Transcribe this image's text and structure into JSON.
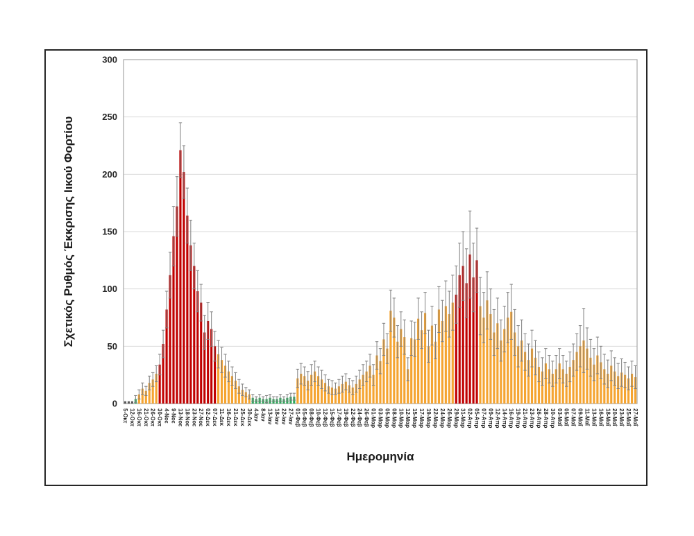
{
  "figure": {
    "background_color": "#FFFFFF",
    "frame_border_color": "#262626"
  },
  "chart_data": {
    "type": "bar",
    "title": "",
    "ylabel": "Σχετικός Ρυθμός Έκκρισης Ιικού Φορτίου",
    "xlabel": "Ημερομηνία",
    "ylim": [
      0,
      300
    ],
    "yticks": [
      0,
      50,
      100,
      150,
      200,
      250,
      300
    ],
    "grid": "horizontal",
    "legend": "none",
    "error_bars": "symmetric, capped, drawn over bars",
    "x_label_every_n_bars": 2,
    "categories": [
      "5-Οκτ",
      "12-Οκτ",
      "16-Οκτ",
      "21-Οκτ",
      "26-Οκτ",
      "30-Οκτ",
      "4-Νοε",
      "9-Νοε",
      "13-Νοε",
      "18-Νοε",
      "23-Νοε",
      "27-Νοε",
      "02-Δεκ",
      "07-Δεκ",
      "11-Δεκ",
      "16-Δεκ",
      "21-Δεκ",
      "25-Δεκ",
      "30-Δεκ",
      "4-Ιαν",
      "8-Ιαν",
      "13-Ιαν",
      "18-Ιαν",
      "22-Ιαν",
      "27-Ιαν",
      "01-Φεβ",
      "05-Φεβ",
      "08-Φεβ",
      "10-Φεβ",
      "12-Φεβ",
      "15-Φεβ",
      "17-Φεβ",
      "19-Φεβ",
      "22-Φεβ",
      "24-Φεβ",
      "26-Φεβ",
      "01-Μαρ",
      "03-Μαρ",
      "05-Μαρ",
      "08-Μαρ",
      "10-Μαρ",
      "12-Μαρ",
      "15-Μαρ",
      "17-Μαρ",
      "19-Μαρ",
      "22-Μαρ",
      "24-Μαρ",
      "26-Μαρ",
      "29-Μαρ",
      "31-Μαρ",
      "02-Απρ",
      "05-Απρ",
      "07-Απρ",
      "09-Απρ",
      "12-Απρ",
      "14-Απρ",
      "16-Απρ",
      "19-Απρ",
      "21-Απρ",
      "23-Απρ",
      "26-Απρ",
      "28-Απρ",
      "30-Απρ",
      "03-Μαΐ",
      "05-Μαΐ",
      "07-Μαΐ",
      "09-Μαΐ",
      "11-Μαΐ",
      "13-Μαΐ",
      "16-Μαΐ",
      "18-Μαΐ",
      "20-Μαΐ",
      "23-Μαΐ",
      "25-Μαΐ",
      "27-Μαΐ"
    ],
    "bar_values": [
      2,
      2,
      2,
      4,
      8,
      13,
      11,
      18,
      21,
      26,
      34,
      52,
      82,
      112,
      146,
      172,
      221,
      202,
      164,
      138,
      120,
      98,
      88,
      62,
      72,
      65,
      50,
      43,
      38,
      33,
      28,
      24,
      20,
      15,
      12,
      10,
      8,
      5,
      4,
      5,
      4,
      4,
      5,
      4,
      4,
      5,
      4,
      5,
      6,
      6,
      22,
      26,
      24,
      20,
      25,
      28,
      24,
      21,
      18,
      15,
      14,
      13,
      15,
      17,
      19,
      16,
      14,
      17,
      21,
      25,
      28,
      33,
      25,
      42,
      37,
      56,
      48,
      81,
      75,
      54,
      65,
      58,
      30,
      57,
      56,
      74,
      64,
      79,
      50,
      68,
      54,
      82,
      72,
      85,
      78,
      88,
      95,
      112,
      120,
      105,
      130,
      110,
      125,
      85,
      75,
      90,
      78,
      62,
      70,
      55,
      65,
      75,
      80,
      62,
      50,
      55,
      45,
      38,
      48,
      40,
      32,
      28,
      35,
      30,
      26,
      30,
      35,
      30,
      26,
      32,
      38,
      45,
      50,
      55,
      48,
      40,
      34,
      42,
      36,
      30,
      26,
      33,
      28,
      24,
      27,
      25,
      22,
      26,
      23
    ],
    "bar_errors": [
      0,
      0,
      0,
      3,
      4,
      5,
      4,
      6,
      6,
      7,
      9,
      12,
      16,
      20,
      26,
      26,
      24,
      23,
      24,
      22,
      20,
      18,
      16,
      15,
      16,
      15,
      13,
      12,
      11,
      10,
      9,
      8,
      7,
      6,
      5,
      4,
      4,
      3,
      2,
      3,
      2,
      3,
      3,
      2,
      2,
      3,
      2,
      3,
      3,
      3,
      8,
      9,
      8,
      8,
      9,
      9,
      8,
      8,
      7,
      6,
      6,
      5,
      6,
      7,
      7,
      6,
      6,
      7,
      8,
      9,
      9,
      10,
      9,
      12,
      11,
      14,
      13,
      18,
      17,
      14,
      15,
      15,
      10,
      15,
      15,
      18,
      16,
      18,
      14,
      17,
      15,
      20,
      18,
      22,
      20,
      24,
      25,
      28,
      30,
      30,
      38,
      30,
      28,
      25,
      22,
      25,
      22,
      20,
      22,
      18,
      20,
      22,
      24,
      20,
      18,
      18,
      16,
      14,
      16,
      15,
      13,
      12,
      13,
      12,
      11,
      12,
      13,
      12,
      11,
      13,
      14,
      16,
      18,
      28,
      18,
      16,
      14,
      16,
      14,
      13,
      12,
      13,
      12,
      11,
      12,
      11,
      10,
      11,
      10
    ],
    "bar_colors": "dddgoooooorrrrrrrrrrrrrrrrroooooooooogggggggggggggoooooooooooooooooooooooooooooooooooooooooooooorrrrrrroooooooooooooooooooooooooooooooooooooooooooooo",
    "palette": {
      "d": "#595959",
      "g": "#2FA95C",
      "o": "#F5A431",
      "r": "#C00000"
    },
    "error_bar_color": "#7F7F7F",
    "gridline_color": "#D9D9D9",
    "plot_border_color": "#A6A6A6",
    "tick_label_color": "#262626"
  }
}
